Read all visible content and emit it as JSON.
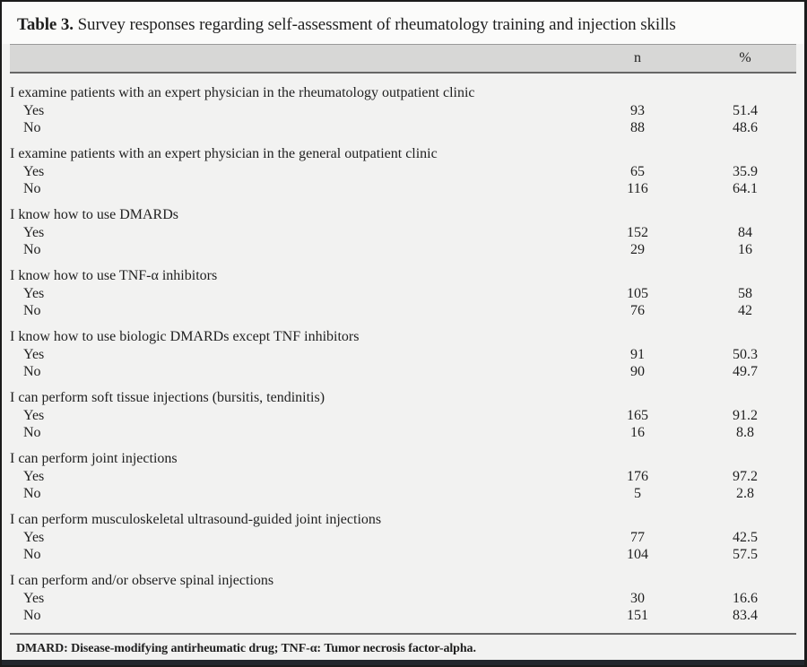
{
  "colors": {
    "header_band_bg": "#d7d7d6",
    "body_bg": "#f2f2f1",
    "title_bg": "#fbfbfa",
    "rule": "#666666",
    "outer_border": "#1b1b1b",
    "bottom_bar": "#23272d",
    "text": "#1f1f1f"
  },
  "table": {
    "title_label": "Table 3.",
    "title_text": "Survey responses regarding self-assessment of rheumatology training and injection skills",
    "columns": {
      "n": "n",
      "percent": "%"
    },
    "sections": [
      {
        "question": "I examine patients with an expert physician in the rheumatology outpatient clinic",
        "rows": [
          {
            "label": "Yes",
            "n": "93",
            "percent": "51.4"
          },
          {
            "label": "No",
            "n": "88",
            "percent": "48.6"
          }
        ]
      },
      {
        "question": "I examine patients with an expert physician in the general outpatient clinic",
        "rows": [
          {
            "label": "Yes",
            "n": "65",
            "percent": "35.9"
          },
          {
            "label": "No",
            "n": "116",
            "percent": "64.1"
          }
        ]
      },
      {
        "question": "I know how to use DMARDs",
        "rows": [
          {
            "label": "Yes",
            "n": "152",
            "percent": "84"
          },
          {
            "label": "No",
            "n": "29",
            "percent": "16"
          }
        ]
      },
      {
        "question": "I know how to use TNF-α inhibitors",
        "rows": [
          {
            "label": "Yes",
            "n": "105",
            "percent": "58"
          },
          {
            "label": "No",
            "n": "76",
            "percent": "42"
          }
        ]
      },
      {
        "question": "I know how to use biologic DMARDs except TNF inhibitors",
        "rows": [
          {
            "label": "Yes",
            "n": "91",
            "percent": "50.3"
          },
          {
            "label": "No",
            "n": "90",
            "percent": "49.7"
          }
        ]
      },
      {
        "question": "I can perform soft tissue injections (bursitis, tendinitis)",
        "rows": [
          {
            "label": "Yes",
            "n": "165",
            "percent": "91.2"
          },
          {
            "label": "No",
            "n": "16",
            "percent": "8.8"
          }
        ]
      },
      {
        "question": "I can perform joint injections",
        "rows": [
          {
            "label": "Yes",
            "n": "176",
            "percent": "97.2"
          },
          {
            "label": "No",
            "n": "5",
            "percent": "2.8"
          }
        ]
      },
      {
        "question": "I can perform musculoskeletal ultrasound-guided joint injections",
        "rows": [
          {
            "label": "Yes",
            "n": "77",
            "percent": "42.5"
          },
          {
            "label": "No",
            "n": "104",
            "percent": "57.5"
          }
        ]
      },
      {
        "question": "I can perform and/or observe spinal injections",
        "rows": [
          {
            "label": "Yes",
            "n": "30",
            "percent": "16.6"
          },
          {
            "label": "No",
            "n": "151",
            "percent": "83.4"
          }
        ]
      }
    ],
    "footnote": "DMARD: Disease-modifying antirheumatic drug; TNF-α: Tumor necrosis factor-alpha."
  }
}
